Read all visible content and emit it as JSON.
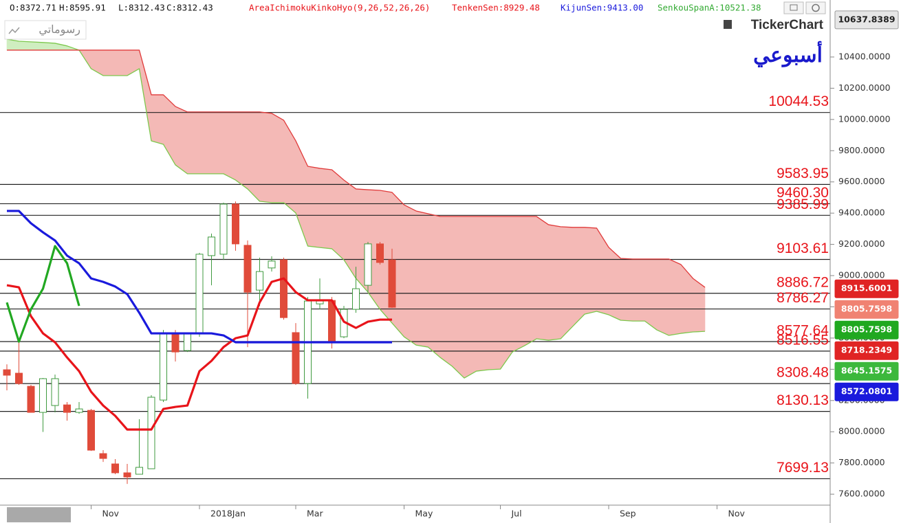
{
  "header": {
    "ohlc": [
      "O:8372.71",
      "H:8595.91",
      "L:8312.43",
      "C:8312.43"
    ],
    "indicator": "AreaIchimokuKinkoHyo(9,26,52,26,26)",
    "tenkan": "TenkenSen:8929.48",
    "kijun": "KijunSen:9413.00",
    "senkou": "SenkouSpanA:10521.38",
    "logo": "TickerChart",
    "my_charts": "رسوماتي",
    "period": "أسبوعي"
  },
  "chart_data": {
    "type": "candlestick",
    "categories": [
      null,
      null,
      null,
      null,
      null,
      null,
      null,
      "Nov",
      null,
      null,
      null,
      null,
      null,
      null,
      null,
      null,
      "2018Jan",
      null,
      null,
      null,
      null,
      null,
      null,
      null,
      "Mar",
      null,
      null,
      null,
      null,
      null,
      null,
      null,
      null,
      "May",
      null,
      null,
      null,
      null,
      null,
      null,
      null,
      "Jul",
      null,
      null,
      null,
      null,
      null,
      null,
      null,
      null,
      "Sep",
      null,
      null,
      null,
      null,
      null,
      null,
      null,
      null,
      "Nov",
      null,
      null,
      null,
      null,
      null,
      null,
      null,
      null,
      null
    ],
    "candles": {
      "up_color": "#3f9a3f",
      "down_color": "#e04b3a",
      "open": [
        8397,
        8375,
        8291,
        8124,
        8168,
        8172,
        8124,
        8137,
        7860,
        7794,
        7737,
        7728,
        7763,
        8203,
        8630,
        8520,
        8630,
        9128,
        9137,
        9458,
        9194,
        8907,
        9049,
        9101,
        8635,
        8309,
        8819,
        8841,
        8608,
        8784,
        8938,
        9203,
        9101,
        null,
        null,
        null,
        null,
        null,
        null,
        null,
        null,
        null,
        null,
        null,
        null,
        null,
        null,
        null,
        null,
        null,
        null,
        null,
        null,
        null,
        null,
        null,
        null,
        null,
        null,
        null,
        null,
        null,
        null,
        null,
        null,
        null,
        null,
        null,
        null
      ],
      "high": [
        8432,
        8573,
        8300,
        8344,
        8366,
        8190,
        8190,
        8146,
        7882,
        7825,
        7794,
        8080,
        8234,
        8652,
        8652,
        8630,
        9146,
        9269,
        9467,
        9475,
        9225,
        9115,
        9124,
        9115,
        8696,
        8863,
        8982,
        8863,
        8806,
        9057,
        9216,
        9216,
        9172,
        null,
        null,
        null,
        null,
        null,
        null,
        null,
        null,
        null,
        null,
        null,
        null,
        null,
        null,
        null,
        null,
        null,
        null,
        null,
        null,
        null,
        null,
        null,
        null,
        null,
        null,
        null,
        null,
        null,
        null,
        null,
        null,
        null,
        null,
        null,
        null
      ],
      "low": [
        8265,
        8300,
        8124,
        7999,
        8124,
        8071,
        8115,
        7877,
        7807,
        7728,
        7666,
        7728,
        7763,
        8190,
        8450,
        8511,
        8608,
        8938,
        9101,
        9159,
        8542,
        8806,
        9026,
        8718,
        8300,
        8212,
        8784,
        8533,
        8599,
        8762,
        8894,
        9071,
        8793,
        null,
        null,
        null,
        null,
        null,
        null,
        null,
        null,
        null,
        null,
        null,
        null,
        null,
        null,
        null,
        null,
        null,
        null,
        null,
        null,
        null,
        null,
        null,
        null,
        null,
        null,
        null,
        null,
        null,
        null,
        null,
        null,
        null,
        null,
        null,
        null
      ],
      "close": [
        8362,
        8309,
        8124,
        8340,
        8340,
        8124,
        8146,
        7882,
        7829,
        7737,
        7710,
        7772,
        8221,
        8630,
        8511,
        8630,
        9137,
        9247,
        9458,
        9203,
        8894,
        9026,
        9093,
        8731,
        8309,
        8837,
        8837,
        8573,
        8784,
        8916,
        9203,
        9084,
        8797,
        null,
        null,
        null,
        null,
        null,
        null,
        null,
        null,
        null,
        null,
        null,
        null,
        null,
        null,
        null,
        null,
        null,
        null,
        null,
        null,
        null,
        null,
        null,
        null,
        null,
        null,
        null,
        null,
        null,
        null,
        null,
        null,
        null,
        null,
        null,
        null
      ]
    },
    "cloud": {
      "fill_up": "#cfeec0",
      "fill_down": "#f4b9b6",
      "span_a": {
        "color": "#7cc84c",
        "values": [
          10514,
          10501,
          10497,
          10493,
          10488,
          10471,
          10444,
          10325,
          10281,
          10281,
          10281,
          10325,
          9863,
          9841,
          9709,
          9652,
          9652,
          9652,
          9652,
          9612,
          9555,
          9476,
          9467,
          9467,
          9401,
          9189,
          9180,
          9172,
          9101,
          8982,
          8894,
          8784,
          8696,
          8608,
          8555,
          8542,
          8476,
          8419,
          8344,
          8388,
          8397,
          8401,
          8511,
          8551,
          8595,
          8586,
          8595,
          8674,
          8753,
          8771,
          8749,
          8714,
          8709,
          8709,
          8652,
          8617,
          8630,
          8639,
          8643,
          null,
          null,
          null,
          null,
          null,
          null,
          null,
          null,
          null,
          null
        ]
      },
      "span_b": {
        "color": "#e03a3a",
        "values": [
          10444,
          10444,
          10444,
          10444,
          10444,
          10444,
          10444,
          10444,
          10444,
          10444,
          10444,
          10444,
          10158,
          10158,
          10083,
          10048,
          10048,
          10048,
          10048,
          10048,
          10048,
          10048,
          10039,
          9995,
          9863,
          9700,
          9687,
          9678,
          9612,
          9555,
          9550,
          9546,
          9533,
          9453,
          9414,
          9396,
          9379,
          9379,
          9379,
          9379,
          9379,
          9379,
          9379,
          9379,
          9379,
          9326,
          9313,
          9309,
          9309,
          9304,
          9181,
          9110,
          9106,
          9106,
          9106,
          9106,
          9071,
          8982,
          8925,
          null,
          null,
          null,
          null,
          null,
          null,
          null,
          null,
          null,
          null
        ]
      }
    },
    "lines": [
      {
        "color": "#e8141a",
        "values": [
          8938,
          8925,
          8740,
          8630,
          8573,
          8476,
          8388,
          8256,
          8168,
          8102,
          8014,
          8014,
          8014,
          8146,
          8159,
          8168,
          8388,
          8454,
          8542,
          8599,
          8617,
          8828,
          8960,
          8982,
          8894,
          8842,
          8842,
          8842,
          8705,
          8665,
          8705,
          8718,
          8718,
          null,
          null,
          null,
          null,
          null,
          null,
          null,
          null,
          null,
          null,
          null,
          null,
          null,
          null,
          null,
          null,
          null,
          null,
          null,
          null,
          null,
          null,
          null,
          null,
          null,
          null,
          null,
          null,
          null,
          null,
          null,
          null,
          null,
          null,
          null,
          null
        ]
      },
      {
        "color": "#1a1adc",
        "values": [
          9414,
          9414,
          9335,
          9277,
          9225,
          9128,
          9079,
          8982,
          8960,
          8930,
          8881,
          8762,
          8630,
          8630,
          8630,
          8630,
          8630,
          8630,
          8617,
          8573,
          8573,
          8573,
          8573,
          8573,
          8573,
          8573,
          8573,
          8573,
          8573,
          8573,
          8573,
          8573,
          8573,
          null,
          null,
          null,
          null,
          null,
          null,
          null,
          null,
          null,
          null,
          null,
          null,
          null,
          null,
          null,
          null,
          null,
          null,
          null,
          null,
          null,
          null,
          null,
          null,
          null,
          null,
          null,
          null,
          null,
          null,
          null,
          null,
          null,
          null,
          null,
          null
        ]
      },
      {
        "color": "#22a822",
        "values": [
          8828,
          8577,
          8784,
          8916,
          9189,
          9079,
          8806,
          null,
          null,
          null,
          null,
          null,
          null,
          null,
          null,
          null,
          null,
          null,
          null,
          null,
          null,
          null,
          null,
          null,
          null,
          null,
          null,
          null,
          null,
          null,
          null,
          null,
          null,
          null,
          null,
          null,
          null,
          null,
          null,
          null,
          null,
          null,
          null,
          null,
          null,
          null,
          null,
          null,
          null,
          null,
          null,
          null,
          null,
          null,
          null,
          null,
          null,
          null,
          null,
          null,
          null,
          null,
          null,
          null,
          null,
          null,
          null,
          null,
          null
        ]
      }
    ],
    "levels": [
      10044.53,
      9583.95,
      {
        "value": 9460.3,
        "label": "9460.30"
      },
      9385.99,
      9103.61,
      8886.72,
      8786.27,
      8577.64,
      8516.55,
      8308.48,
      8130.13,
      7699.13
    ],
    "level_color": "#e8141a",
    "price_tags": [
      {
        "value": 10637.8389,
        "color": "#e6e6e6"
      },
      {
        "value": 8915.6001,
        "color": "#e02424"
      },
      {
        "value": 8805.7598,
        "color": "#f08272"
      },
      {
        "value": 8805.7598,
        "color": "#20a820"
      },
      {
        "value": 8718.2349,
        "color": "#e02424"
      },
      {
        "value": 8645.1575,
        "color": "#3cb83c"
      },
      {
        "value": 8572.0801,
        "color": "#1a1adc"
      }
    ],
    "ylim": [
      7530,
      10677
    ],
    "yticks": [
      {
        "value": 7600,
        "label": "7600.0000"
      },
      {
        "value": 7800,
        "label": "7800.0000"
      },
      {
        "value": 8000,
        "label": "8000.0000"
      },
      {
        "value": 8200,
        "label": "8200.0000"
      },
      {
        "value": 8400,
        "label": "8400.0000"
      },
      {
        "value": 8600,
        "label": "8600.0000"
      },
      {
        "value": 8800,
        "label": "8800.0000"
      },
      {
        "value": 9000,
        "label": "9000.0000"
      },
      {
        "value": 9200,
        "label": "9200.0000"
      },
      {
        "value": 9400,
        "label": "9400.0000"
      },
      {
        "value": 9600,
        "label": "9600.0000"
      },
      {
        "value": 9800,
        "label": "9800.0000"
      },
      {
        "value": 10000,
        "label": "10000.0000"
      },
      {
        "value": 10200,
        "label": "10200.0000"
      },
      {
        "value": 10400,
        "label": "10400.0000"
      }
    ]
  }
}
